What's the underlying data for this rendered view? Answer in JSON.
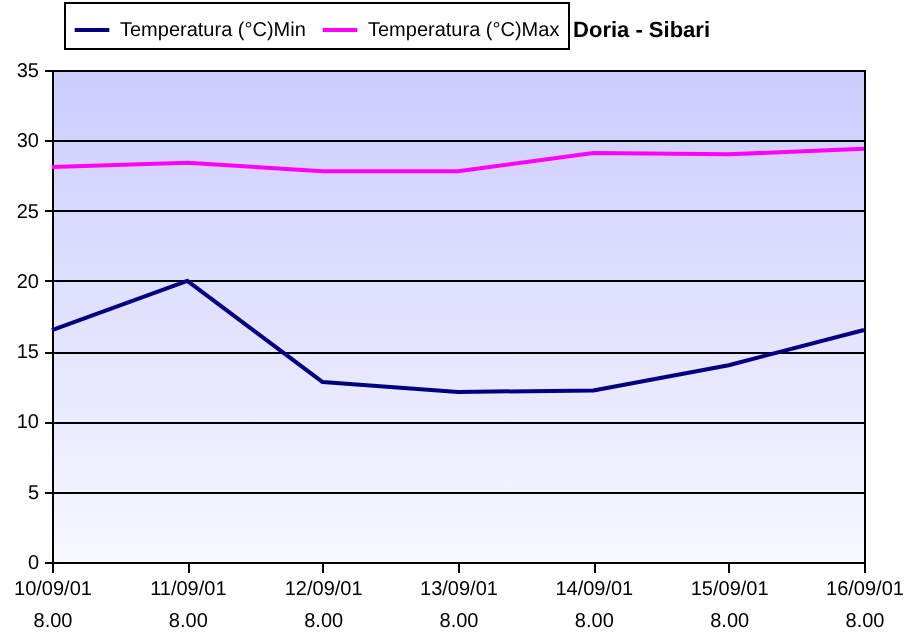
{
  "chart_data": {
    "type": "line",
    "title": "Doria - Sibari",
    "categories": [
      "10/09/01 8.00",
      "11/09/01 8.00",
      "12/09/01 8.00",
      "13/09/01 8.00",
      "14/09/01 8.00",
      "15/09/01 8.00",
      "16/09/01 8.00"
    ],
    "series": [
      {
        "name": "Temperatura (°C)Min",
        "color": "#000080",
        "values": [
          16.5,
          20,
          12.8,
          12.1,
          12.2,
          14,
          16.5
        ]
      },
      {
        "name": "Temperatura (°C)Max",
        "color": "#ff00ff",
        "values": [
          28.1,
          28.4,
          27.8,
          27.8,
          29.1,
          29.0,
          29.4
        ]
      }
    ],
    "ylim": [
      0,
      35
    ],
    "yticks": [
      0,
      5,
      10,
      15,
      20,
      25,
      30,
      35
    ],
    "grid": "y",
    "legend": "top left",
    "marker": "none",
    "line_style": "solid"
  }
}
